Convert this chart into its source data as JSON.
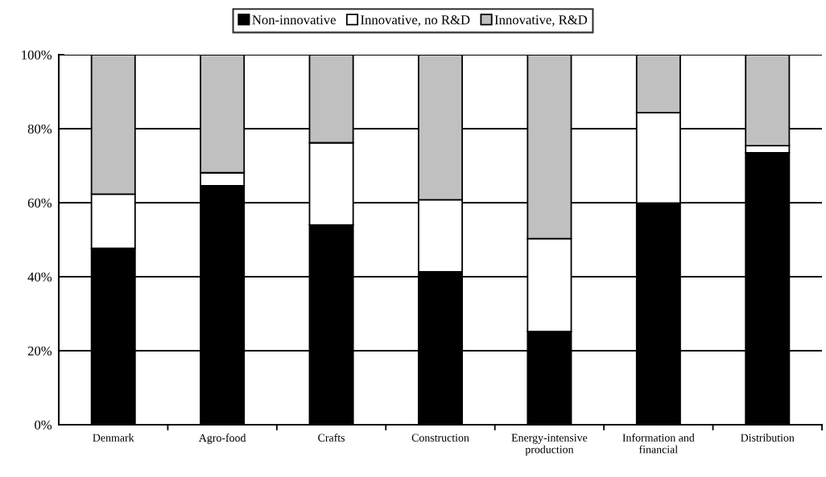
{
  "chart_data": {
    "type": "bar",
    "stacked": true,
    "categories": [
      "Denmark",
      "Agro-food",
      "Crafts",
      "Construction",
      "Energy-intensive\nproduction",
      "Information and\nfinancial",
      "Distribution"
    ],
    "series": [
      {
        "name": "Non-innovative",
        "color": "#000000",
        "values": [
          47.7,
          64.6,
          54.0,
          41.3,
          25.2,
          59.9,
          73.5
        ]
      },
      {
        "name": "Innovative, no R&D",
        "color": "#ffffff",
        "values": [
          14.6,
          3.5,
          22.2,
          19.5,
          25.1,
          24.4,
          1.9
        ]
      },
      {
        "name": "Innovative, R&D",
        "color": "#c0c0c0",
        "values": [
          37.7,
          31.9,
          23.8,
          39.2,
          49.7,
          15.7,
          24.6
        ]
      }
    ],
    "ylim": [
      0,
      100
    ],
    "yticks": [
      {
        "value": 0,
        "label": "0%"
      },
      {
        "value": 20,
        "label": "20%"
      },
      {
        "value": 40,
        "label": "40%"
      },
      {
        "value": 60,
        "label": "60%"
      },
      {
        "value": 80,
        "label": "80%"
      },
      {
        "value": 100,
        "label": "100%"
      }
    ],
    "grid": "y",
    "legend": "top"
  }
}
